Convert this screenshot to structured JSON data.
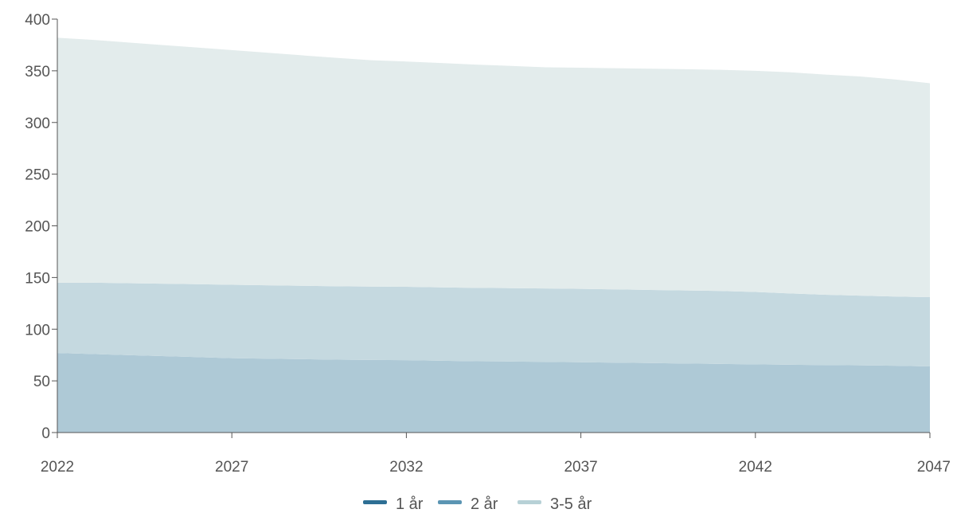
{
  "chart_data": {
    "type": "area",
    "stacked": true,
    "x": [
      2022,
      2023,
      2024,
      2025,
      2026,
      2027,
      2028,
      2029,
      2030,
      2031,
      2032,
      2033,
      2034,
      2035,
      2036,
      2037,
      2038,
      2039,
      2040,
      2041,
      2042,
      2043,
      2044,
      2045,
      2046,
      2047
    ],
    "series": [
      {
        "name": "1 år",
        "color": "#2e6f94",
        "area_color": "#aec9d6",
        "values": [
          77,
          76,
          75,
          74,
          73,
          72,
          71.5,
          71,
          70.5,
          70.2,
          70,
          69.5,
          69,
          68.7,
          68.4,
          68,
          67.6,
          67.2,
          66.8,
          66.4,
          66,
          65.6,
          65.3,
          65,
          64.6,
          64
        ]
      },
      {
        "name": "2 år",
        "color": "#5b95b3",
        "area_color": "#c5d9e0",
        "values": [
          68,
          69,
          69.5,
          70,
          70.5,
          71,
          71,
          71,
          71,
          71,
          71,
          71,
          71,
          71,
          71,
          71,
          70.9,
          70.8,
          70.7,
          70.6,
          70,
          69,
          68,
          67.5,
          67,
          67
        ]
      },
      {
        "name": "3-5 år",
        "color": "#b7d1d6",
        "area_color": "#e3ecec",
        "values": [
          237,
          235,
          233,
          231,
          229,
          227,
          225,
          223,
          221,
          219,
          218,
          217,
          216,
          215,
          214,
          214,
          214,
          214,
          214,
          214,
          214,
          214,
          213,
          212,
          210,
          207
        ]
      }
    ],
    "x_ticks": [
      "2022",
      "2027",
      "2032",
      "2037",
      "2042",
      "2047"
    ],
    "y_ticks": [
      "0",
      "50",
      "100",
      "150",
      "200",
      "250",
      "300",
      "350",
      "400"
    ],
    "ylim": [
      0,
      400
    ],
    "xlim": [
      2022,
      2047
    ],
    "grid": false,
    "legend_position": "bottom-center",
    "axis_color": "#555555"
  }
}
